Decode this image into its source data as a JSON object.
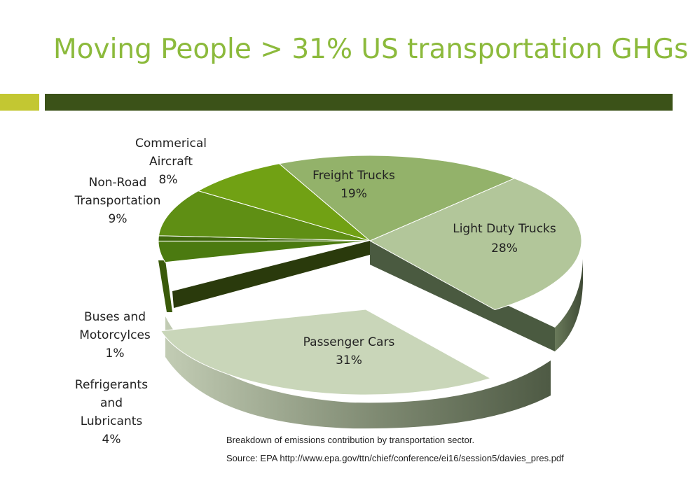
{
  "slide": {
    "title": "Moving People > 31% US transportation GHGs",
    "accent_color": "#c3c732",
    "bar_color": "#3b5218",
    "title_color": "#8cba3c"
  },
  "chart_data": {
    "type": "pie",
    "categories": [
      "Light Duty Trucks",
      "Passenger Cars",
      "Refrigerants and Lubricants",
      "Buses and Motorcylces",
      "Non-Road Transportation",
      "Commerical Aircraft",
      "Freight Trucks"
    ],
    "values": [
      28,
      31,
      4,
      1,
      9,
      8,
      19
    ],
    "value_labels": [
      "28%",
      "31%",
      "4%",
      "1%",
      "9%",
      "8%",
      "19%"
    ],
    "colors": [
      "#b2c69a",
      "#c9d6b9",
      "#4b7a10",
      "#3f680c",
      "#5f8f14",
      "#71a114",
      "#93b26a"
    ]
  },
  "labels": {
    "freight_trucks": {
      "name": "Freight Trucks",
      "value": "19%"
    },
    "light_duty_trucks": {
      "name": "Light Duty Trucks",
      "value": "28%"
    },
    "passenger_cars": {
      "name": "Passenger Cars",
      "value": "31%"
    },
    "commercial_aircraft": {
      "line1": "Commerical",
      "line2": "Aircraft",
      "value": "8%"
    },
    "non_road": {
      "line1": "Non-Road",
      "line2": "Transportation",
      "value": "9%"
    },
    "buses": {
      "line1": "Buses and",
      "line2": "Motorcylces",
      "value": "1%"
    },
    "refrigerants": {
      "line1": "Refrigerants",
      "line2": "and",
      "line3": "Lubricants",
      "value": "4%"
    }
  },
  "notes": {
    "caption": "Breakdown of emissions contribution by transportation sector.",
    "source": "Source: EPA http://www.epa.gov/ttn/chief/conference/ei16/session5/davies_pres.pdf"
  }
}
